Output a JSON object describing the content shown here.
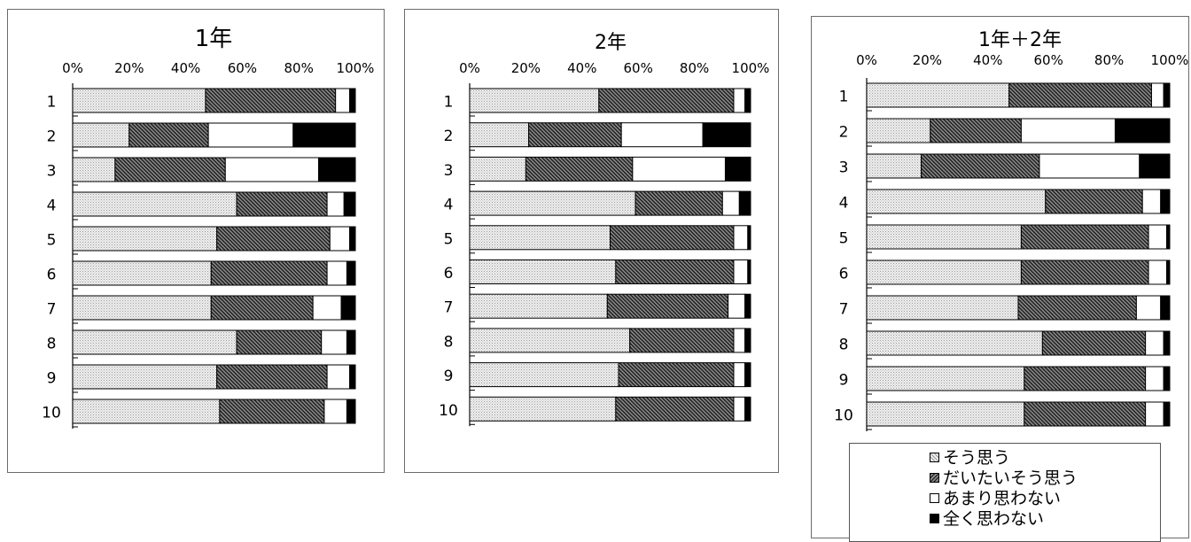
{
  "chart_data": [
    {
      "type": "bar",
      "orientation": "horizontal",
      "stacked": "percent",
      "title": "1年",
      "categories": [
        "1",
        "2",
        "3",
        "4",
        "5",
        "6",
        "7",
        "8",
        "9",
        "10"
      ],
      "xlim": [
        0,
        100
      ],
      "x_tick_labels": [
        "0%",
        "20%",
        "40%",
        "60%",
        "80%",
        "100%"
      ],
      "series": [
        {
          "name": "そう思う",
          "values": [
            47,
            20,
            15,
            58,
            51,
            49,
            49,
            58,
            51,
            52
          ]
        },
        {
          "name": "だいたいそう思う",
          "values": [
            46,
            28,
            39,
            32,
            40,
            41,
            36,
            30,
            39,
            37
          ]
        },
        {
          "name": "あまり思わない",
          "values": [
            5,
            30,
            33,
            6,
            7,
            7,
            10,
            9,
            8,
            8
          ]
        },
        {
          "name": "全く思わない",
          "values": [
            2,
            22,
            13,
            4,
            2,
            3,
            5,
            3,
            2,
            3
          ]
        }
      ]
    },
    {
      "type": "bar",
      "orientation": "horizontal",
      "stacked": "percent",
      "title": "2年",
      "categories": [
        "1",
        "2",
        "3",
        "4",
        "5",
        "6",
        "7",
        "8",
        "9",
        "10"
      ],
      "xlim": [
        0,
        100
      ],
      "x_tick_labels": [
        "0%",
        "20%",
        "40%",
        "60%",
        "80%",
        "100%"
      ],
      "series": [
        {
          "name": "そう思う",
          "values": [
            46,
            21,
            20,
            59,
            50,
            52,
            49,
            57,
            53,
            52
          ]
        },
        {
          "name": "だいたいそう思う",
          "values": [
            48,
            33,
            38,
            31,
            44,
            42,
            43,
            37,
            41,
            42
          ]
        },
        {
          "name": "あまり思わない",
          "values": [
            4,
            29,
            33,
            6,
            5,
            5,
            6,
            4,
            4,
            4
          ]
        },
        {
          "name": "全く思わない",
          "values": [
            2,
            17,
            9,
            4,
            1,
            1,
            2,
            2,
            2,
            2
          ]
        }
      ]
    },
    {
      "type": "bar",
      "orientation": "horizontal",
      "stacked": "percent",
      "title": "1年＋2年",
      "categories": [
        "1",
        "2",
        "3",
        "4",
        "5",
        "6",
        "7",
        "8",
        "9",
        "10"
      ],
      "xlim": [
        0,
        100
      ],
      "x_tick_labels": [
        "0%",
        "20%",
        "40%",
        "60%",
        "80%",
        "100%"
      ],
      "series": [
        {
          "name": "そう思う",
          "values": [
            47,
            21,
            18,
            59,
            51,
            51,
            50,
            58,
            52,
            52
          ]
        },
        {
          "name": "だいたいそう思う",
          "values": [
            47,
            30,
            39,
            32,
            42,
            42,
            39,
            34,
            40,
            40
          ]
        },
        {
          "name": "あまり思わない",
          "values": [
            4,
            31,
            33,
            6,
            6,
            6,
            8,
            6,
            6,
            6
          ]
        },
        {
          "name": "全く思わない",
          "values": [
            2,
            18,
            10,
            3,
            1,
            1,
            3,
            2,
            2,
            2
          ]
        }
      ]
    }
  ],
  "legend": {
    "items": [
      {
        "label": "そう思う",
        "pattern": "dots"
      },
      {
        "label": "だいたいそう思う",
        "pattern": "diagonal"
      },
      {
        "label": "あまり思わない",
        "pattern": "white"
      },
      {
        "label": "全く思わない",
        "pattern": "black"
      }
    ]
  }
}
